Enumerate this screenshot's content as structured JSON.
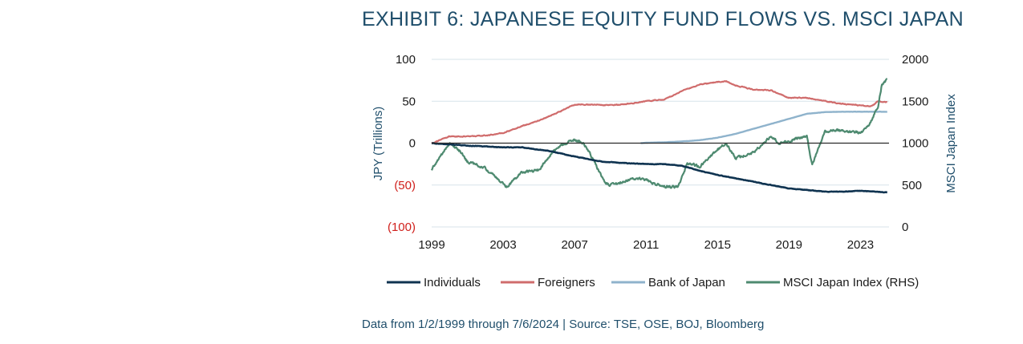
{
  "title": "EXHIBIT 6: JAPANESE EQUITY FUND FLOWS VS. MSCI JAPAN",
  "source": "Data from 1/2/1999 through 7/6/2024 | Source: TSE, OSE, BOJ, Bloomberg",
  "chart_data": {
    "type": "line",
    "title": "EXHIBIT 6: JAPANESE EQUITY FUND FLOWS VS. MSCI JAPAN",
    "xlabel": "",
    "ylabel": "JPY (Trillions)",
    "y2label": "MSCI Japan Index",
    "xlim": [
      1999,
      2024.6
    ],
    "ylim": [
      -100,
      100
    ],
    "y2lim": [
      0,
      2000
    ],
    "x_ticks": [
      "1999",
      "2003",
      "2007",
      "2011",
      "2015",
      "2019",
      "2023"
    ],
    "y_ticks": [
      "100",
      "50",
      "0",
      "(50)",
      "(100)"
    ],
    "y2_ticks": [
      "2000",
      "1500",
      "1000",
      "500",
      "0"
    ],
    "grid": "horizontal",
    "legend_position": "bottom",
    "series": [
      {
        "name": "Individuals",
        "axis": "left",
        "color": "#0f3350",
        "x": [
          1999,
          2001,
          2003,
          2004,
          2005.5,
          2007,
          2008.5,
          2010,
          2011,
          2012,
          2013,
          2014,
          2015,
          2016,
          2017,
          2018,
          2019,
          2020,
          2021,
          2022,
          2023,
          2024,
          2024.5
        ],
        "y": [
          0,
          -3,
          -5,
          -5,
          -9,
          -16,
          -22,
          -24,
          -25,
          -25,
          -27,
          -33,
          -38,
          -42,
          -46,
          -50,
          -54,
          -56,
          -58,
          -58,
          -57,
          -58,
          -59
        ]
      },
      {
        "name": "Foreigners",
        "axis": "left",
        "color": "#d06c6c",
        "x": [
          1999,
          2000,
          2001,
          2002,
          2003,
          2004,
          2005,
          2006,
          2007,
          2008,
          2009,
          2010,
          2011,
          2012,
          2013,
          2014,
          2015,
          2015.5,
          2016,
          2017,
          2018,
          2019,
          2020,
          2021,
          2022,
          2023,
          2023.6,
          2024,
          2024.5
        ],
        "y": [
          0,
          8,
          8,
          9,
          12,
          20,
          27,
          36,
          46,
          46,
          45,
          47,
          50,
          52,
          62,
          70,
          73,
          74,
          69,
          64,
          63,
          54,
          54,
          50,
          47,
          45,
          44,
          50,
          49
        ]
      },
      {
        "name": "Bank of Japan",
        "axis": "left",
        "color": "#8fb3cc",
        "x": [
          2010.7,
          2011,
          2012,
          2013,
          2014,
          2015,
          2016,
          2017,
          2018,
          2019,
          2020,
          2021,
          2022,
          2023,
          2024,
          2024.5
        ],
        "y": [
          0,
          0.5,
          1,
          2,
          3.5,
          6.5,
          11,
          17,
          23,
          29,
          35,
          37,
          37.5,
          37.5,
          37.5,
          37.5
        ]
      },
      {
        "name": "MSCI Japan Index (RHS)",
        "axis": "right",
        "color": "#4e8a70",
        "x": [
          1999,
          1999.5,
          2000,
          2000.6,
          2001,
          2002,
          2003.2,
          2004,
          2005,
          2005.8,
          2006.5,
          2007,
          2007.5,
          2008,
          2008.7,
          2009.2,
          2010,
          2010.5,
          2011,
          2012,
          2012.8,
          2013.3,
          2014,
          2015,
          2015.5,
          2016,
          2017,
          2018,
          2018.5,
          2019,
          2020,
          2020.3,
          2021,
          2021.5,
          2022,
          2023,
          2023.5,
          2024,
          2024.2,
          2024.5
        ],
        "y": [
          680,
          850,
          1000,
          900,
          780,
          700,
          480,
          650,
          680,
          900,
          1000,
          1040,
          1000,
          820,
          520,
          500,
          560,
          580,
          560,
          480,
          480,
          760,
          720,
          920,
          1000,
          820,
          890,
          1080,
          1000,
          1030,
          1080,
          730,
          1140,
          1150,
          1150,
          1120,
          1220,
          1450,
          1700,
          1760
        ]
      }
    ]
  }
}
